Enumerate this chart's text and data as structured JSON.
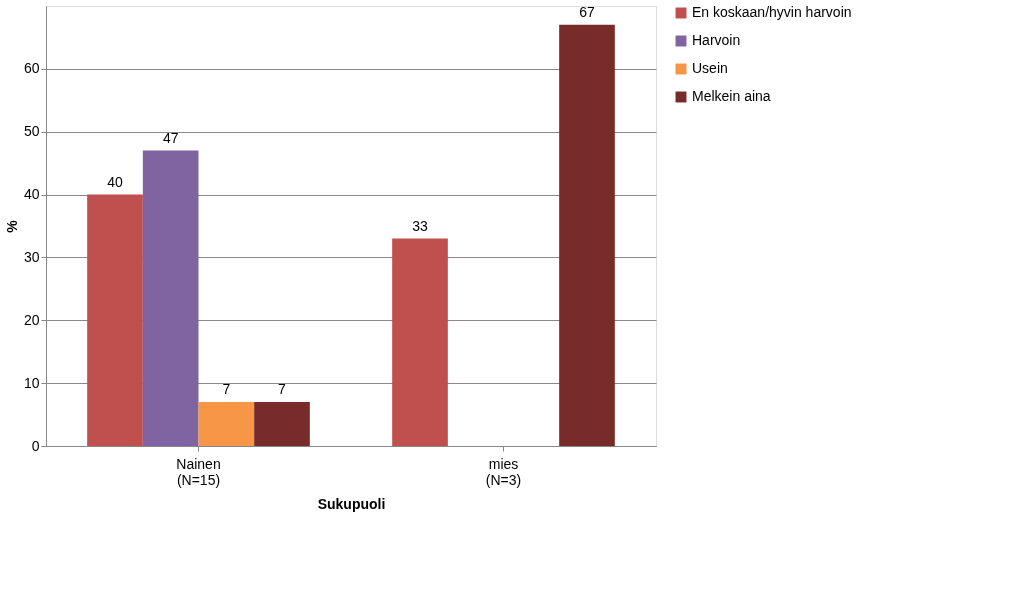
{
  "chart_data": {
    "type": "bar",
    "xlabel": "Sukupuoli",
    "ylabel": "%",
    "categories": [
      "Nainen\n(N=15)",
      "mies\n(N=3)"
    ],
    "series": [
      {
        "name": "En koskaan/hyvin harvoin",
        "color": "#c0504d",
        "values": [
          40,
          33
        ]
      },
      {
        "name": "Harvoin",
        "color": "#8064a2",
        "values": [
          47,
          null
        ]
      },
      {
        "name": "Usein",
        "color": "#f79646",
        "values": [
          7,
          null
        ]
      },
      {
        "name": "Melkein aina",
        "color": "#772c2a",
        "values": [
          7,
          67
        ]
      }
    ],
    "ylim": [
      0,
      70
    ],
    "yticks": [
      0,
      10,
      20,
      30,
      40,
      50,
      60
    ],
    "grid": "y",
    "legend": "right",
    "data_labels": true
  }
}
